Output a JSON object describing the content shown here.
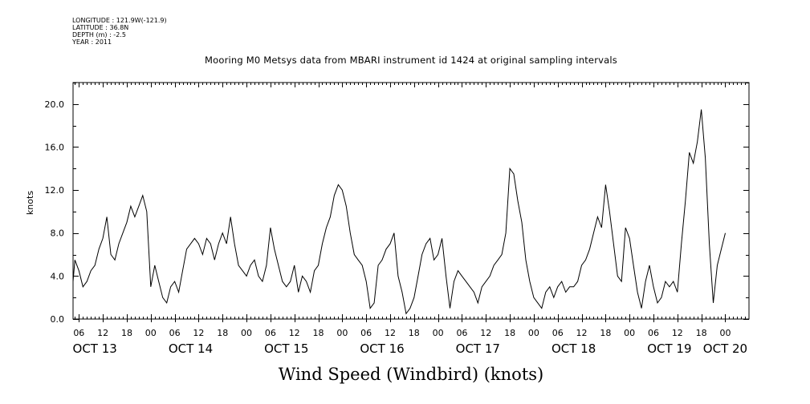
{
  "meta": {
    "longitude": "LONGITUDE : 121.9W(-121.9)",
    "latitude": "LATITUDE : 36.8N",
    "depth": "DEPTH (m) : -2.5",
    "year": "YEAR : 2011"
  },
  "chart_data": {
    "type": "line",
    "title": "Mooring M0 Metsys data from MBARI instrument id 1424 at original sampling intervals",
    "xlabel": "Wind Speed (Windbird) (knots)",
    "ylabel": "knots",
    "ylim": [
      0,
      22.0
    ],
    "xlim": [
      0,
      168
    ],
    "x_units": "hours since OCT 13 00:00 2011",
    "yticks": [
      0.0,
      4.0,
      8.0,
      12.0,
      16.0,
      20.0
    ],
    "ytick_labels": [
      "0.0",
      "4.0",
      "8.0",
      "12.0",
      "16.0",
      "20.0"
    ],
    "hour_ticks": [
      {
        "h": 6,
        "label": "06"
      },
      {
        "h": 12,
        "label": "12"
      },
      {
        "h": 18,
        "label": "18"
      },
      {
        "h": 24,
        "label": "00"
      },
      {
        "h": 30,
        "label": "06"
      },
      {
        "h": 36,
        "label": "12"
      },
      {
        "h": 42,
        "label": "18"
      },
      {
        "h": 48,
        "label": "00"
      },
      {
        "h": 54,
        "label": "06"
      },
      {
        "h": 60,
        "label": "12"
      },
      {
        "h": 66,
        "label": "18"
      },
      {
        "h": 72,
        "label": "00"
      },
      {
        "h": 78,
        "label": "06"
      },
      {
        "h": 84,
        "label": "12"
      },
      {
        "h": 90,
        "label": "18"
      },
      {
        "h": 96,
        "label": "00"
      },
      {
        "h": 102,
        "label": "06"
      },
      {
        "h": 108,
        "label": "12"
      },
      {
        "h": 114,
        "label": "18"
      },
      {
        "h": 120,
        "label": "00"
      },
      {
        "h": 126,
        "label": "06"
      },
      {
        "h": 132,
        "label": "12"
      },
      {
        "h": 138,
        "label": "18"
      },
      {
        "h": 144,
        "label": "00"
      },
      {
        "h": 150,
        "label": "06"
      },
      {
        "h": 156,
        "label": "12"
      },
      {
        "h": 162,
        "label": "18"
      },
      {
        "h": 168,
        "label": "00"
      }
    ],
    "day_labels": [
      {
        "h": 10,
        "label": "OCT 13"
      },
      {
        "h": 34,
        "label": "OCT 14"
      },
      {
        "h": 58,
        "label": "OCT 15"
      },
      {
        "h": 82,
        "label": "OCT 16"
      },
      {
        "h": 106,
        "label": "OCT 17"
      },
      {
        "h": 130,
        "label": "OCT 18"
      },
      {
        "h": 154,
        "label": "OCT 19"
      },
      {
        "h": 168,
        "label": "OCT 20"
      }
    ],
    "series": [
      {
        "name": "",
        "x": [
          0,
          1,
          2,
          3,
          4,
          5,
          6,
          7,
          8,
          9,
          10,
          11,
          12,
          13,
          14,
          15,
          16,
          17,
          18,
          19,
          20,
          21,
          22,
          23,
          24,
          25,
          26,
          27,
          28,
          29,
          30,
          31,
          32,
          33,
          34,
          35,
          36,
          37,
          38,
          39,
          40,
          41,
          42,
          43,
          44,
          45,
          46,
          47,
          48,
          49,
          50,
          51,
          52,
          53,
          54,
          55,
          56,
          57,
          58,
          59,
          60,
          61,
          62,
          63,
          64,
          65,
          66,
          67,
          68,
          69,
          70,
          71,
          72,
          73,
          74,
          75,
          76,
          77,
          78,
          79,
          80,
          81,
          82,
          83,
          84,
          85,
          86,
          87,
          88,
          89,
          90,
          91,
          92,
          93,
          94,
          95,
          96,
          97,
          98,
          99,
          100,
          101,
          102,
          103,
          104,
          105,
          106,
          107,
          108,
          109,
          110,
          111,
          112,
          113,
          114,
          115,
          116,
          117,
          118,
          119,
          120,
          121,
          122,
          123,
          124,
          125,
          126,
          127,
          128,
          129,
          130,
          131,
          132,
          133,
          134,
          135,
          136,
          137,
          138,
          139,
          140,
          141,
          142,
          143,
          144,
          145,
          146,
          147,
          148,
          149,
          150,
          151,
          152,
          153,
          154,
          155,
          156,
          157,
          158,
          159,
          160,
          161,
          162,
          163,
          164,
          165,
          166,
          167,
          168
        ],
        "y": [
          6.0,
          3.0,
          2.0,
          1.0,
          3.5,
          5.5,
          4.5,
          3.0,
          3.5,
          4.5,
          5.0,
          6.5,
          7.5,
          9.5,
          6.0,
          5.5,
          7.0,
          8.0,
          9.0,
          10.5,
          9.5,
          10.5,
          11.5,
          10.0,
          3.0,
          5.0,
          3.5,
          2.0,
          1.5,
          3.0,
          3.5,
          2.5,
          4.5,
          6.5,
          7.0,
          7.5,
          7.0,
          6.0,
          7.5,
          7.0,
          5.5,
          7.0,
          8.0,
          7.0,
          9.5,
          7.0,
          5.0,
          4.5,
          4.0,
          5.0,
          5.5,
          4.0,
          3.5,
          5.0,
          8.5,
          6.5,
          5.0,
          3.5,
          3.0,
          3.5,
          5.0,
          2.5,
          4.0,
          3.5,
          2.5,
          4.5,
          5.0,
          7.0,
          8.5,
          9.5,
          11.5,
          12.5,
          12.0,
          10.5,
          8.0,
          6.0,
          5.5,
          5.0,
          3.5,
          1.0,
          1.5,
          5.0,
          5.5,
          6.5,
          7.0,
          8.0,
          4.0,
          2.5,
          0.5,
          1.0,
          2.0,
          4.0,
          6.0,
          7.0,
          7.5,
          5.5,
          6.0,
          7.5,
          4.0,
          1.0,
          3.5,
          4.5,
          4.0,
          3.5,
          3.0,
          2.5,
          1.5,
          3.0,
          3.5,
          4.0,
          5.0,
          5.5,
          6.0,
          8.0,
          14.0,
          13.5,
          11.0,
          9.0,
          5.5,
          3.5,
          2.0,
          1.5,
          1.0,
          2.5,
          3.0,
          2.0,
          3.0,
          3.5,
          2.5,
          3.0,
          3.0,
          3.5,
          5.0,
          5.5,
          6.5,
          8.0,
          9.5,
          8.5,
          12.5,
          10.0,
          7.0,
          4.0,
          3.5,
          8.5,
          7.5,
          5.0,
          2.5,
          1.0,
          3.5,
          5.0,
          3.0,
          1.5,
          2.0,
          3.5,
          3.0,
          3.5,
          2.5,
          7.0,
          11.0,
          15.5,
          14.5,
          16.5,
          19.5,
          15.0,
          7.0,
          1.5,
          5.0,
          6.5,
          8.0
        ]
      }
    ]
  }
}
